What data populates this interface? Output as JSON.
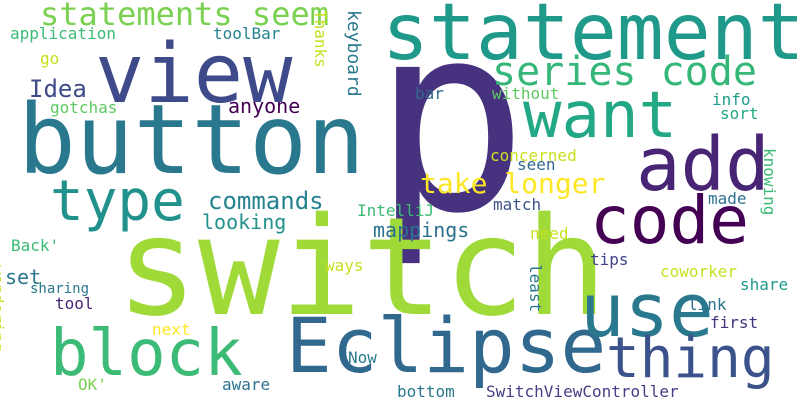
{
  "words": [
    {
      "text": "p",
      "color": "#46327e",
      "rotated": false
    },
    {
      "text": "switch",
      "color": "#a0da39",
      "rotated": false
    },
    {
      "text": "button",
      "color": "#2a788e",
      "rotated": false
    },
    {
      "text": "statements",
      "color": "#1f9a8a",
      "rotated": false
    },
    {
      "text": "Eclipse",
      "color": "#31688e",
      "rotated": false
    },
    {
      "text": "view",
      "color": "#3e4a89",
      "rotated": false
    },
    {
      "text": "add",
      "color": "#482475",
      "rotated": false
    },
    {
      "text": "use",
      "color": "#2a788e",
      "rotated": false
    },
    {
      "text": "code",
      "color": "#440154",
      "rotated": false
    },
    {
      "text": "want",
      "color": "#22a884",
      "rotated": false
    },
    {
      "text": "block",
      "color": "#3bbb75",
      "rotated": false
    },
    {
      "text": "thing",
      "color": "#3b528b",
      "rotated": false
    },
    {
      "text": "type",
      "color": "#21918c",
      "rotated": false
    },
    {
      "text": "series code",
      "color": "#35b779",
      "rotated": false
    },
    {
      "text": "statements seem",
      "color": "#7ad151",
      "rotated": false
    },
    {
      "text": "take longer",
      "color": "#fde725",
      "rotated": false
    },
    {
      "text": "commands",
      "color": "#26828e",
      "rotated": false
    },
    {
      "text": "Idea",
      "color": "#3e4a89",
      "rotated": false
    },
    {
      "text": "looking",
      "color": "#21918c",
      "rotated": false
    },
    {
      "text": "mappings",
      "color": "#2c728e",
      "rotated": false
    },
    {
      "text": "concerned",
      "color": "#c8e020",
      "rotated": false
    },
    {
      "text": "anyone",
      "color": "#440154",
      "rotated": false
    },
    {
      "text": "gotchas",
      "color": "#5ec962",
      "rotated": false
    },
    {
      "text": "application",
      "color": "#3bbb75",
      "rotated": false
    },
    {
      "text": "coworker",
      "color": "#c8e020",
      "rotated": false
    },
    {
      "text": "IntelliJ",
      "color": "#3bbb75",
      "rotated": false
    },
    {
      "text": "match",
      "color": "#3b528b",
      "rotated": false
    },
    {
      "text": "set",
      "color": "#2a788e",
      "rotated": false
    },
    {
      "text": "tips",
      "color": "#414487",
      "rotated": false
    },
    {
      "text": "SwitchViewController",
      "color": "#433e85",
      "rotated": false
    },
    {
      "text": "toolBar",
      "color": "#26828e",
      "rotated": false
    },
    {
      "text": "info",
      "color": "#1f9a8a",
      "rotated": false
    },
    {
      "text": "sort",
      "color": "#22a884",
      "rotated": false
    },
    {
      "text": "seen",
      "color": "#31688e",
      "rotated": false
    },
    {
      "text": "made",
      "color": "#2c728e",
      "rotated": false
    },
    {
      "text": "need",
      "color": "#c8e020",
      "rotated": false
    },
    {
      "text": "sharing",
      "color": "#2a788e",
      "rotated": false
    },
    {
      "text": "tool",
      "color": "#482475",
      "rotated": false
    },
    {
      "text": "link",
      "color": "#2c728e",
      "rotated": false
    },
    {
      "text": "first",
      "color": "#46327e",
      "rotated": false
    },
    {
      "text": "aware",
      "color": "#2c728e",
      "rotated": false
    },
    {
      "text": "bottom",
      "color": "#2a788e",
      "rotated": false
    },
    {
      "text": "Now",
      "color": "#2a788e",
      "rotated": false
    },
    {
      "text": "next",
      "color": "#fde725",
      "rotated": false
    },
    {
      "text": "OK'",
      "color": "#7ad151",
      "rotated": false
    },
    {
      "text": "ways",
      "color": "#c8e020",
      "rotated": false
    },
    {
      "text": "Back'",
      "color": "#3bbb75",
      "rotated": false
    },
    {
      "text": "go",
      "color": "#c8e020",
      "rotated": false
    },
    {
      "text": "bar",
      "color": "#31688e",
      "rotated": false
    },
    {
      "text": "without",
      "color": "#5ec962",
      "rotated": false
    },
    {
      "text": "keyboard",
      "color": "#2a788e",
      "rotated": true
    },
    {
      "text": "Thanks",
      "color": "#c8e020",
      "rotated": true
    },
    {
      "text": "knowing",
      "color": "#3bbb75",
      "rotated": true
    },
    {
      "text": "least",
      "color": "#2a788e",
      "rotated": true
    },
    {
      "text": "share",
      "color": "#1f9a8a",
      "rotated": false
    },
    {
      "text": "wondering",
      "color": "#c8e020",
      "rotated": true
    }
  ]
}
